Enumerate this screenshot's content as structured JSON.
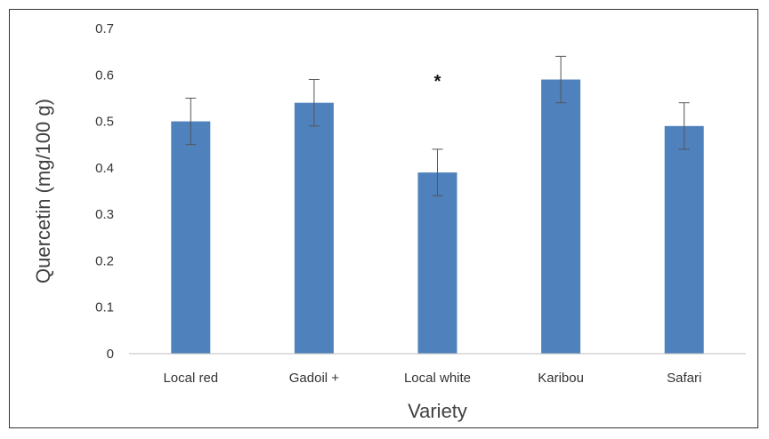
{
  "chart_data": {
    "type": "bar",
    "title": "",
    "xlabel": "Variety",
    "ylabel": "Quercetin (mg/100 g)",
    "categories": [
      "Local red",
      "Gadoil +",
      "Local white",
      "Karibou",
      "Safari"
    ],
    "values": [
      0.5,
      0.54,
      0.39,
      0.59,
      0.49
    ],
    "errors": [
      0.05,
      0.05,
      0.05,
      0.05,
      0.05
    ],
    "ylim": [
      0,
      0.7
    ],
    "yticks": [
      "0",
      "0.1",
      "0.2",
      "0.3",
      "0.4",
      "0.5",
      "0.6",
      "0.7"
    ],
    "ytick_values": [
      0,
      0.1,
      0.2,
      0.3,
      0.4,
      0.5,
      0.6,
      0.7
    ],
    "grid": false,
    "legend": "none",
    "bar_color": "#4F81BD",
    "annotations": [
      {
        "category": "Local white",
        "text": "*"
      }
    ]
  }
}
